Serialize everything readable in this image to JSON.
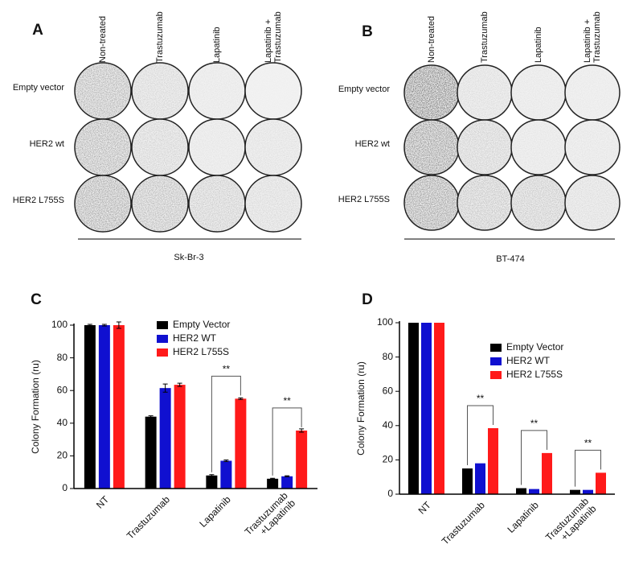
{
  "image_panels": [
    {
      "label": "A",
      "columns": [
        "Non-treated",
        "Trastuzumab",
        "Lapatinib",
        "Lapatinib +\nTrastuzumab"
      ],
      "rows": [
        "Empty vector",
        "HER2 wt",
        "HER2 L755S"
      ],
      "cell_line": "Sk-Br-3"
    },
    {
      "label": "B",
      "columns": [
        "Non-treated",
        "Trastuzumab",
        "Lapatinib",
        "Lapatinib +\nTrastuzumab"
      ],
      "rows": [
        "Empty vector",
        "HER2 wt",
        "HER2 L755S"
      ],
      "cell_line": "BT-474"
    }
  ],
  "chart_data": [
    {
      "type": "bar",
      "panel_label": "C",
      "y_label": "Colony Formation (ru)",
      "categories": [
        "NT",
        "Trastuzumab",
        "Lapatinib",
        "Trastuzumab\n+Lapatinib"
      ],
      "series": [
        {
          "name": "Empty Vector",
          "color": "#000000",
          "values": [
            100,
            44,
            8,
            6
          ],
          "errors": [
            0.5,
            0.5,
            0.5,
            0.3
          ]
        },
        {
          "name": "HER2 WT",
          "color": "#1010d0",
          "values": [
            100,
            61.5,
            17,
            7.5
          ],
          "errors": [
            0.5,
            2.5,
            0.5,
            0.3
          ]
        },
        {
          "name": "HER2 L755S",
          "color": "#ff1a1a",
          "values": [
            100,
            63.5,
            55,
            35.5
          ],
          "errors": [
            2,
            1,
            0.5,
            1
          ]
        }
      ],
      "annotations": [
        "**",
        "**"
      ],
      "ylim": [
        0,
        100
      ],
      "yticks": [
        0,
        20,
        40,
        60,
        80,
        100
      ],
      "legend": "upper right"
    },
    {
      "type": "bar",
      "panel_label": "D",
      "y_label": "Colony Formation (ru)",
      "categories": [
        "NT",
        "Trastuzumab",
        "Lapatinib",
        "Trastuzumab\n+Lapatinib"
      ],
      "series": [
        {
          "name": "Empty Vector",
          "color": "#000000",
          "values": [
            100,
            15,
            3.5,
            2.5
          ]
        },
        {
          "name": "HER2 WT",
          "color": "#1010d0",
          "values": [
            100,
            18,
            3,
            2.5
          ]
        },
        {
          "name": "HER2 L755S",
          "color": "#ff1a1a",
          "values": [
            100,
            38.5,
            24,
            12.5
          ]
        }
      ],
      "annotations": [
        "**",
        "**",
        "**"
      ],
      "ylim": [
        0,
        100
      ],
      "yticks": [
        0,
        20,
        40,
        60,
        80,
        100
      ],
      "legend": "upper right"
    }
  ]
}
